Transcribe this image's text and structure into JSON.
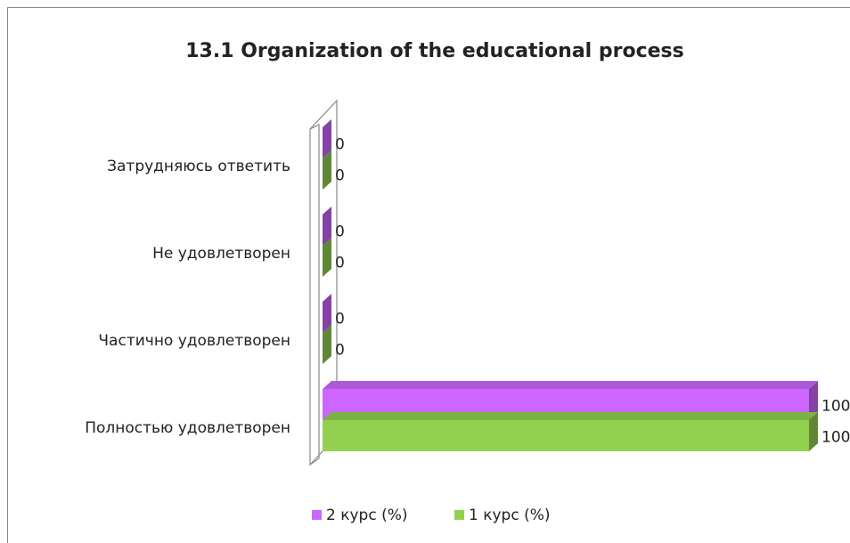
{
  "chart_data": {
    "type": "bar3d_horizontal",
    "title": "13.1 Organization of the educational process",
    "categories": [
      "Затрудняюсь ответить",
      "Не удовлетворен",
      "Частично удовлетворен",
      "Полностью удовлетворен"
    ],
    "series": [
      {
        "name": "2 курс (%)",
        "color": "#cc66ff",
        "values": [
          0,
          0,
          0,
          100
        ]
      },
      {
        "name": "1 курс (%)",
        "color": "#92d050",
        "values": [
          0,
          0,
          0,
          100
        ]
      }
    ],
    "legend": "bottom"
  }
}
